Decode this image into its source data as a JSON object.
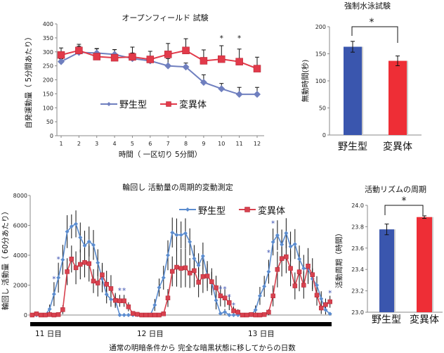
{
  "chart_data": [
    {
      "type": "line",
      "title": "オープンフィールド 試験",
      "xlabel": "時間（ 一区切り 5分間）",
      "ylabel": "自発運動量（ 5分間あたり）",
      "x": [
        1,
        2,
        3,
        4,
        5,
        6,
        7,
        8,
        9,
        10,
        11,
        12
      ],
      "ylim": [
        0,
        400
      ],
      "yticks": [
        0,
        50,
        100,
        150,
        200,
        250,
        300,
        350,
        400
      ],
      "legend": "center",
      "series": [
        {
          "name": "野生型",
          "color": "#6f7fbf",
          "marker": "diamond",
          "values": [
            265,
            298,
            296,
            291,
            276,
            268,
            250,
            246,
            191,
            168,
            148,
            148
          ],
          "err": [
            10,
            22,
            15,
            17,
            20,
            15,
            26,
            14,
            27,
            19,
            25,
            25
          ]
        },
        {
          "name": "変異体",
          "color": "#e23a4a",
          "marker": "square",
          "values": [
            289,
            305,
            283,
            279,
            282,
            273,
            291,
            305,
            268,
            274,
            265,
            240
          ],
          "err": [
            25,
            22,
            29,
            29,
            35,
            29,
            39,
            42,
            39,
            48,
            45,
            41
          ]
        }
      ],
      "significance": [
        {
          "x": 10,
          "label": "*"
        },
        {
          "x": 11,
          "label": "*"
        }
      ]
    },
    {
      "type": "bar",
      "title": "強制水泳試験",
      "ylabel": "無動時間(秒)",
      "categories": [
        "野生型",
        "変異体"
      ],
      "values": [
        163,
        137
      ],
      "err": [
        10,
        9
      ],
      "colors": [
        "#3a56ae",
        "#ee2e36"
      ],
      "ylim": [
        0,
        200
      ],
      "yticks": [
        0,
        50,
        100,
        150,
        200
      ],
      "significance": "*"
    },
    {
      "type": "line",
      "title": "輪回し 活動量の周期的変動測定",
      "xlabel": "通常の明暗条件から 完全な暗黒状態に移してからの日数",
      "ylabel": "輪回し 活動量（ 60分あたり）",
      "day_labels": [
        "11 日目",
        "12 日目",
        "13 日目"
      ],
      "ylim": [
        0,
        8000
      ],
      "yticks": [
        0,
        2000,
        4000,
        6000,
        8000
      ],
      "legend": "top-right",
      "series": [
        {
          "name": "野生型",
          "color": "#5b8ccf",
          "marker": "diamond",
          "values": [
            0,
            0,
            0,
            0,
            400,
            1400,
            2500,
            3700,
            5580,
            5930,
            6100,
            5190,
            4640,
            4920,
            4690,
            3500,
            2420,
            1380,
            1050,
            980,
            0,
            0,
            0,
            0,
            0,
            0,
            0,
            0,
            670,
            1840,
            2500,
            4000,
            5520,
            5360,
            5360,
            5470,
            4900,
            3780,
            3330,
            3950,
            2620,
            2190,
            980,
            100,
            200,
            0,
            0,
            0,
            0,
            0,
            0,
            340,
            1280,
            1920,
            2900,
            4890,
            5340,
            4720,
            5480,
            4580,
            4750,
            3750,
            3125,
            3080,
            2420,
            2000,
            1090,
            340,
            80
          ],
          "err": [
            0,
            0,
            0,
            0,
            300,
            800,
            1000,
            1000,
            1100,
            800,
            900,
            1000,
            1000,
            1000,
            1000,
            900,
            900,
            600,
            500,
            400,
            0,
            0,
            0,
            0,
            0,
            0,
            0,
            0,
            400,
            600,
            800,
            1000,
            1000,
            1100,
            900,
            1000,
            900,
            900,
            800,
            900,
            800,
            700,
            600,
            100,
            200,
            0,
            0,
            0,
            0,
            0,
            0,
            300,
            600,
            700,
            800,
            900,
            1000,
            1000,
            1000,
            1000,
            1000,
            900,
            900,
            800,
            700,
            600,
            500,
            300,
            100
          ]
        },
        {
          "name": "変異体",
          "color": "#d8424f",
          "marker": "square",
          "values": [
            0,
            80,
            0,
            0,
            30,
            0,
            30,
            360,
            2900,
            3750,
            3160,
            3390,
            3520,
            3440,
            2270,
            2140,
            2690,
            2060,
            1770,
            980,
            950,
            950,
            550,
            110,
            50,
            0,
            0,
            0,
            0,
            0,
            80,
            1140,
            2920,
            3200,
            3125,
            3160,
            2810,
            2970,
            2190,
            2580,
            2610,
            2230,
            1830,
            1280,
            1140,
            830,
            280,
            190,
            0,
            0,
            30,
            0,
            0,
            30,
            190,
            1280,
            3050,
            3780,
            3900,
            3125,
            1950,
            2890,
            2000,
            3280,
            2700,
            1330,
            470,
            700,
            890
          ],
          "err": [
            0,
            100,
            0,
            0,
            50,
            0,
            50,
            300,
            900,
            900,
            1100,
            1000,
            1000,
            1200,
            800,
            900,
            800,
            900,
            900,
            500,
            400,
            400,
            300,
            100,
            100,
            0,
            0,
            0,
            0,
            0,
            100,
            600,
            1000,
            1300,
            1300,
            1300,
            1000,
            1100,
            1000,
            1100,
            1000,
            900,
            800,
            700,
            600,
            500,
            300,
            200,
            0,
            0,
            50,
            0,
            0,
            50,
            200,
            700,
            1200,
            1200,
            1100,
            1200,
            900,
            1300,
            900,
            1200,
            1100,
            700,
            400,
            400,
            400
          ]
        }
      ],
      "significance": [
        {
          "index": 5,
          "value": 2420,
          "label": "*"
        },
        {
          "index": 6,
          "value": 3750,
          "label": "*"
        },
        {
          "index": 20,
          "value": 1640,
          "label": "*"
        },
        {
          "index": 21,
          "value": 1640,
          "label": "*"
        },
        {
          "index": 43,
          "value": 1750,
          "label": "*"
        },
        {
          "index": 44,
          "value": 1750,
          "label": "*"
        },
        {
          "index": 45,
          "value": 1220,
          "label": "*"
        },
        {
          "index": 46,
          "value": 660,
          "label": "*"
        },
        {
          "index": 54,
          "value": 4180,
          "label": "*"
        },
        {
          "index": 55,
          "value": 6130,
          "label": "*"
        },
        {
          "index": 68,
          "value": 1480,
          "label": "*"
        }
      ]
    },
    {
      "type": "bar",
      "title": "活動リズムの周期",
      "ylabel": "活動周期（時間）",
      "categories": [
        "野生型",
        "変異体"
      ],
      "values": [
        23.775,
        23.89
      ],
      "err": [
        0.05,
        0.012
      ],
      "colors": [
        "#3a56ae",
        "#ee2e36"
      ],
      "ylim": [
        23.0,
        24.0
      ],
      "yticks": [
        "23.0",
        "23.2",
        "23.4",
        "23.6",
        "23.8",
        "24.0"
      ],
      "significance": "*"
    }
  ]
}
